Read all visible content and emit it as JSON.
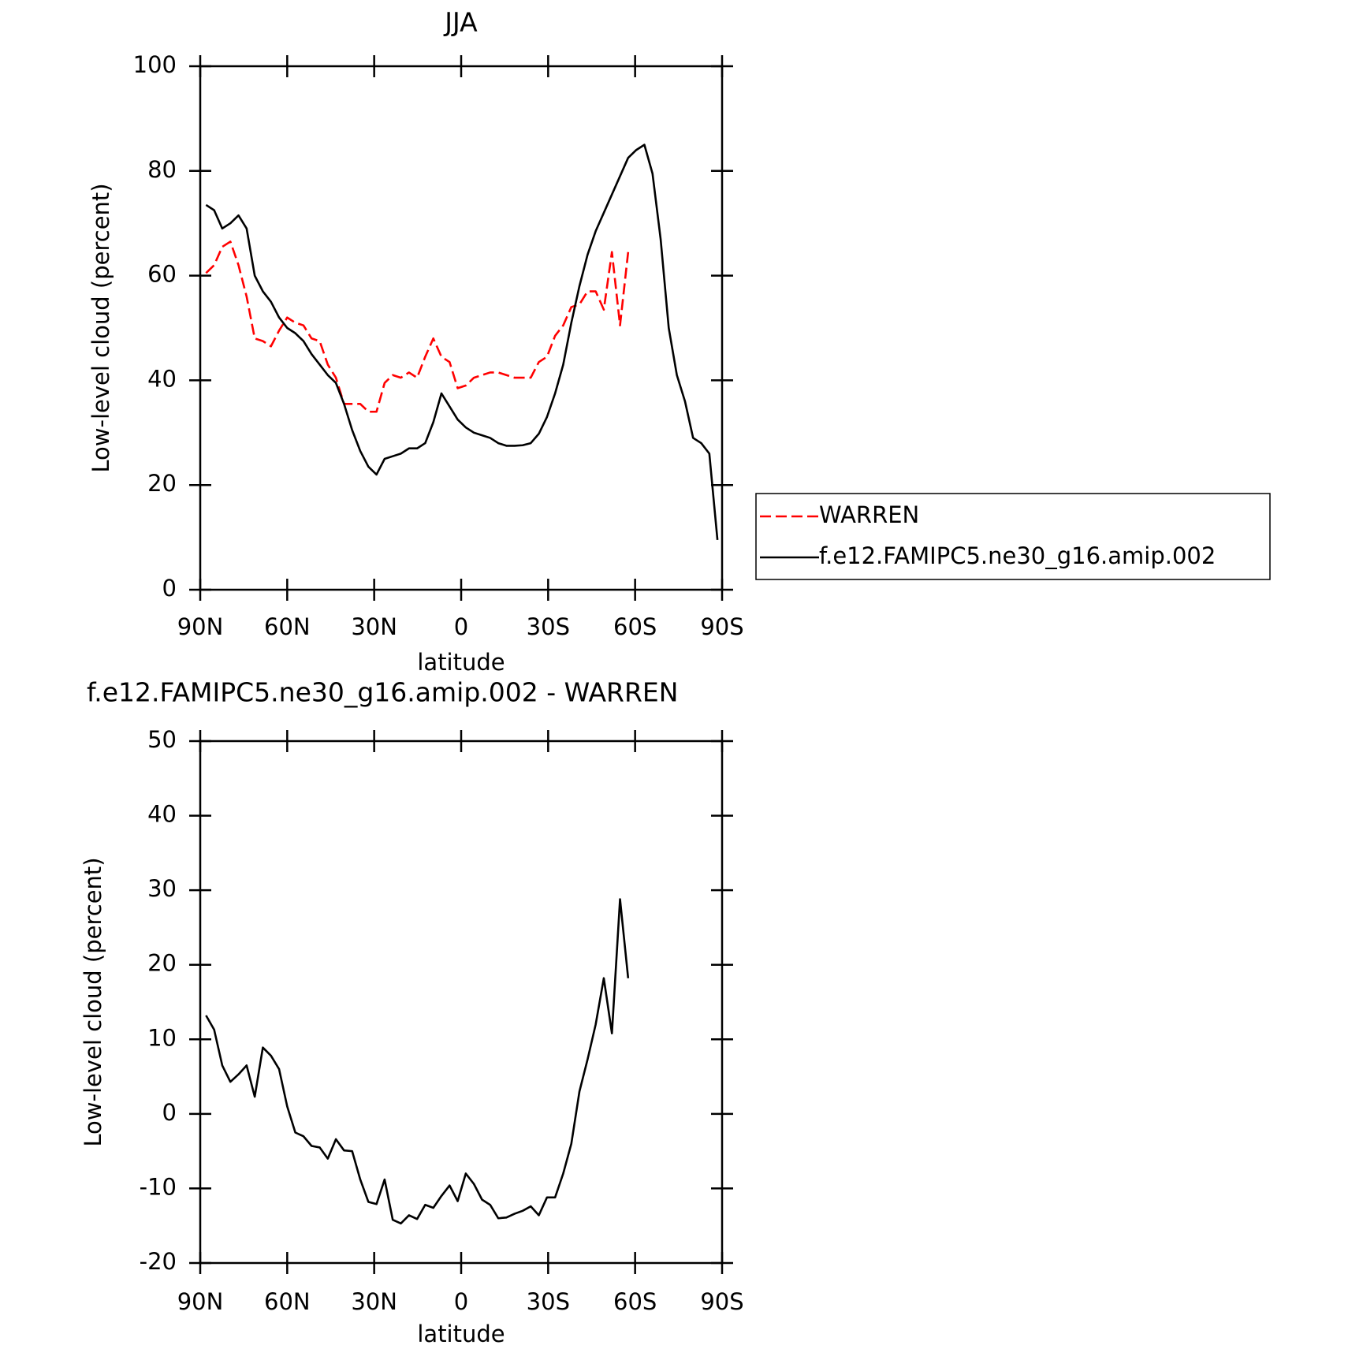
{
  "chart_data": [
    {
      "type": "line",
      "title": "JJA",
      "xlabel": "latitude",
      "ylabel": "Low-level cloud (percent)",
      "xlim": [
        90,
        -90
      ],
      "ylim": [
        0,
        100
      ],
      "xticks": [
        {
          "value": 90,
          "label": "90N"
        },
        {
          "value": 60,
          "label": "60N"
        },
        {
          "value": 30,
          "label": "30N"
        },
        0,
        {
          "value": -30,
          "label": "30S"
        },
        {
          "value": -60,
          "label": "60S"
        },
        {
          "value": -90,
          "label": "90S"
        }
      ],
      "yticks": [
        0,
        20,
        40,
        60,
        80,
        100
      ],
      "legend": "right",
      "x": [
        88,
        85.2,
        82.4,
        79.6,
        76.8,
        74,
        71.2,
        68.4,
        65.6,
        62.8,
        60,
        57.2,
        54.4,
        51.6,
        48.8,
        46,
        43.2,
        40.4,
        37.6,
        34.8,
        32,
        29.2,
        26.4,
        23.6,
        20.8,
        18,
        15.2,
        12.4,
        9.6,
        6.8,
        4,
        1.2,
        -1.6,
        -4.4,
        -7.2,
        -10,
        -12.8,
        -15.6,
        -18.4,
        -21.2,
        -24,
        -26.8,
        -29.6,
        -32.4,
        -35.2,
        -38,
        -40.8,
        -43.6,
        -46.4,
        -49.2,
        -52,
        -54.8,
        -57.6,
        -60.4,
        -63.2,
        -66,
        -68.8,
        -71.6,
        -74.4,
        -77.2,
        -80,
        -82.8,
        -85.6,
        -88.4
      ],
      "series": [
        {
          "name": "WARREN",
          "color": "#ff0000",
          "line_style": "dashed",
          "values": [
            60.5,
            62,
            65.5,
            66.5,
            62,
            56,
            48,
            47.5,
            46.5,
            49.5,
            52,
            51,
            50.5,
            48,
            47.5,
            43,
            40.5,
            35.5,
            35.5,
            35.5,
            34,
            34,
            39.5,
            41,
            40.5,
            41.5,
            40.5,
            44.5,
            48,
            44.5,
            43.5,
            38.5,
            39,
            40.5,
            41,
            41.5,
            41.5,
            41,
            40.5,
            40.5,
            40.5,
            43.5,
            44.5,
            48.5,
            50.5,
            54,
            54.5,
            57,
            57,
            53.5,
            64.5,
            50.5,
            64.5,
            null,
            null,
            null,
            null,
            null,
            null,
            null,
            null,
            null,
            null,
            null
          ]
        },
        {
          "name": "f.e12.FAMIPC5.ne30_g16.amip.002",
          "color": "#000000",
          "line_style": "solid",
          "values": [
            73.5,
            72.5,
            69,
            70,
            71.5,
            69,
            60,
            57,
            55,
            52,
            50,
            49,
            47.5,
            45,
            43,
            41,
            39.5,
            35.5,
            30.5,
            26.5,
            23.5,
            22,
            25,
            25.5,
            26,
            27,
            27,
            28,
            32,
            37.5,
            35,
            32.5,
            31,
            30,
            29.5,
            29,
            28,
            27.5,
            27.5,
            27.6,
            28,
            29.8,
            33,
            37.5,
            43,
            51,
            58,
            64,
            68.5,
            72,
            75.5,
            79,
            82.5,
            84,
            85,
            79.5,
            67,
            50,
            41,
            36,
            29,
            28,
            26,
            9.5
          ]
        }
      ]
    },
    {
      "type": "line",
      "title": "f.e12.FAMIPC5.ne30_g16.amip.002 - WARREN",
      "xlabel": "latitude",
      "ylabel": "Low-level cloud (percent)",
      "xlim": [
        90,
        -90
      ],
      "ylim": [
        -20,
        50
      ],
      "xticks": [
        {
          "value": 90,
          "label": "90N"
        },
        {
          "value": 60,
          "label": "60N"
        },
        {
          "value": 30,
          "label": "30N"
        },
        0,
        {
          "value": -30,
          "label": "30S"
        },
        {
          "value": -60,
          "label": "60S"
        },
        {
          "value": -90,
          "label": "90S"
        }
      ],
      "yticks": [
        -20,
        -10,
        0,
        10,
        20,
        30,
        40,
        50
      ],
      "color": "#000000",
      "x": [
        88,
        85.2,
        82.4,
        79.6,
        76.8,
        74,
        71.2,
        68.4,
        65.6,
        62.8,
        60,
        57.2,
        54.4,
        51.6,
        48.8,
        46,
        43.2,
        40.4,
        37.6,
        34.8,
        32,
        29.2,
        26.4,
        23.6,
        20.8,
        18,
        15.2,
        12.4,
        9.6,
        6.8,
        4,
        1.2,
        -1.6,
        -4.4,
        -7.2,
        -10,
        -12.8,
        -15.6,
        -18.4,
        -21.2,
        -24,
        -26.8,
        -29.6,
        -32.4,
        -35.2,
        -38,
        -40.8,
        -43.6,
        -46.4,
        -49.2,
        -52,
        -54.8,
        -57.6,
        -60.4,
        -63.2,
        -66,
        -68.8,
        -71.6,
        -74.4,
        -77.2,
        -80,
        -82.8,
        -85.6,
        -88.4
      ],
      "values": [
        13.2,
        11.3,
        6.5,
        4.3,
        5.3,
        6.5,
        2.3,
        8.9,
        7.8,
        6,
        1,
        -2.5,
        -3,
        -4.3,
        -4.5,
        -6,
        -3.4,
        -4.9,
        -5,
        -8.8,
        -11.8,
        -12.1,
        -8.8,
        -14.2,
        -14.7,
        -13.6,
        -14.1,
        -12.2,
        -12.6,
        -11,
        -9.6,
        -11.7,
        -8,
        -9.4,
        -11.5,
        -12.2,
        -14,
        -13.9,
        -13.4,
        -13,
        -12.4,
        -13.6,
        -11.2,
        -11.2,
        -8,
        -4,
        3,
        7.3,
        12,
        18.2,
        10.8,
        28.8,
        18.2,
        null,
        null,
        null,
        null,
        null,
        null,
        null,
        null,
        null,
        null,
        null
      ]
    }
  ]
}
